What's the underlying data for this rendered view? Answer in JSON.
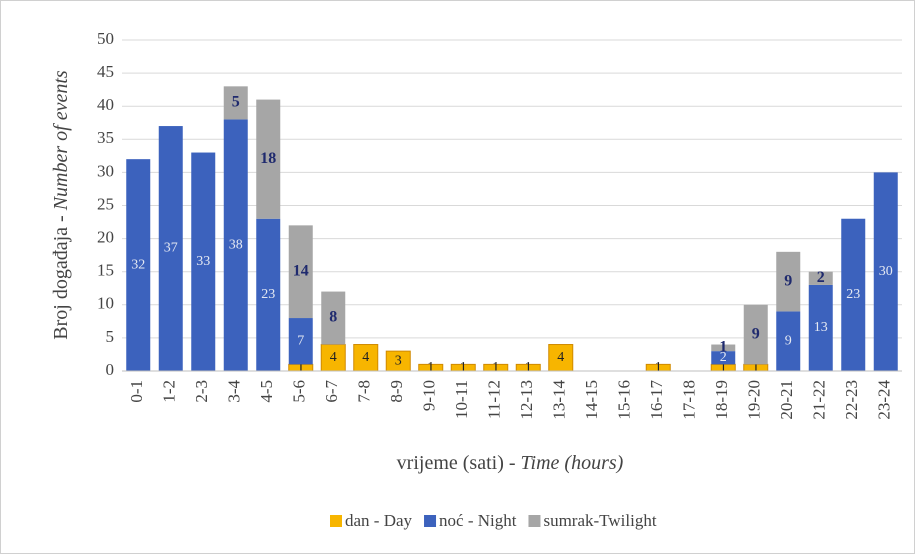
{
  "chart_data": {
    "type": "stacked_bar",
    "categories": [
      "0-1",
      "1-2",
      "2-3",
      "3-4",
      "4-5",
      "5-6",
      "6-7",
      "7-8",
      "8-9",
      "9-10",
      "10-11",
      "11-12",
      "12-13",
      "13-14",
      "14-15",
      "15-16",
      "16-17",
      "17-18",
      "18-19",
      "19-20",
      "20-21",
      "21-22",
      "22-23",
      "23-24"
    ],
    "series": [
      {
        "name": "dan - Day",
        "color": "#f7b500",
        "label_color": "#222222",
        "values": [
          null,
          null,
          null,
          null,
          null,
          1,
          4,
          4,
          3,
          1,
          1,
          1,
          1,
          4,
          null,
          null,
          1,
          null,
          1,
          1,
          null,
          null,
          null,
          null
        ]
      },
      {
        "name": "noć - Night",
        "color": "#3c62bd",
        "label_color": "#e4e8f2",
        "values": [
          32,
          37,
          33,
          38,
          23,
          7,
          null,
          null,
          null,
          null,
          null,
          null,
          null,
          null,
          null,
          null,
          null,
          null,
          2,
          null,
          9,
          13,
          23,
          30
        ]
      },
      {
        "name": "sumrak-Twilight",
        "color": "#a6a6a6",
        "label_color": "#1f2a6e",
        "values": [
          null,
          null,
          null,
          5,
          18,
          14,
          8,
          null,
          null,
          null,
          null,
          null,
          null,
          null,
          null,
          null,
          null,
          null,
          1,
          9,
          9,
          2,
          null,
          null
        ]
      }
    ],
    "ylim": [
      0,
      50
    ],
    "yticks": [
      0,
      5,
      10,
      15,
      20,
      25,
      30,
      35,
      40,
      45,
      50
    ],
    "grid": true,
    "ylabel": [
      "Broj događaja - ",
      "Number of events"
    ],
    "xlabel": [
      "vrijeme (sati) - ",
      "Time (hours)"
    ],
    "legend": "bottom"
  }
}
